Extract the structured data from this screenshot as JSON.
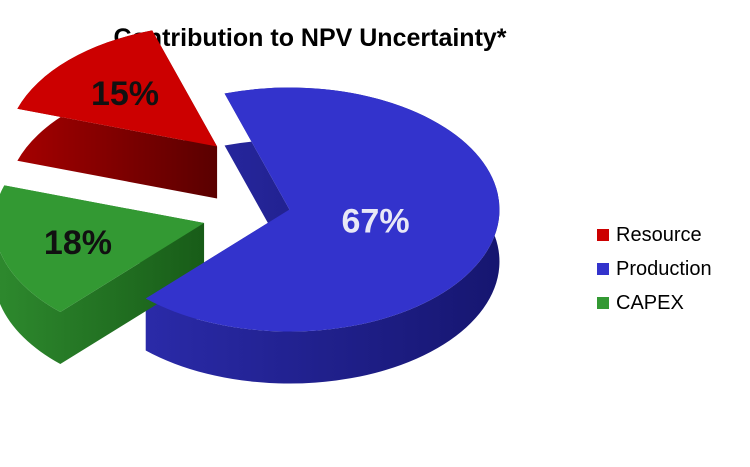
{
  "chart_data": {
    "type": "pie",
    "title": "Contribution to NPV Uncertainty*",
    "categories": [
      "Resource",
      "Production",
      "CAPEX"
    ],
    "values": [
      15,
      67,
      18
    ],
    "data_labels": [
      "15%",
      "67%",
      "18%"
    ],
    "colors": [
      "#cc0000",
      "#3333cc",
      "#339933"
    ],
    "label_colors": [
      "#111111",
      "#e8e8f6",
      "#111111"
    ],
    "legend_position": "right",
    "style": "3d-exploded"
  }
}
